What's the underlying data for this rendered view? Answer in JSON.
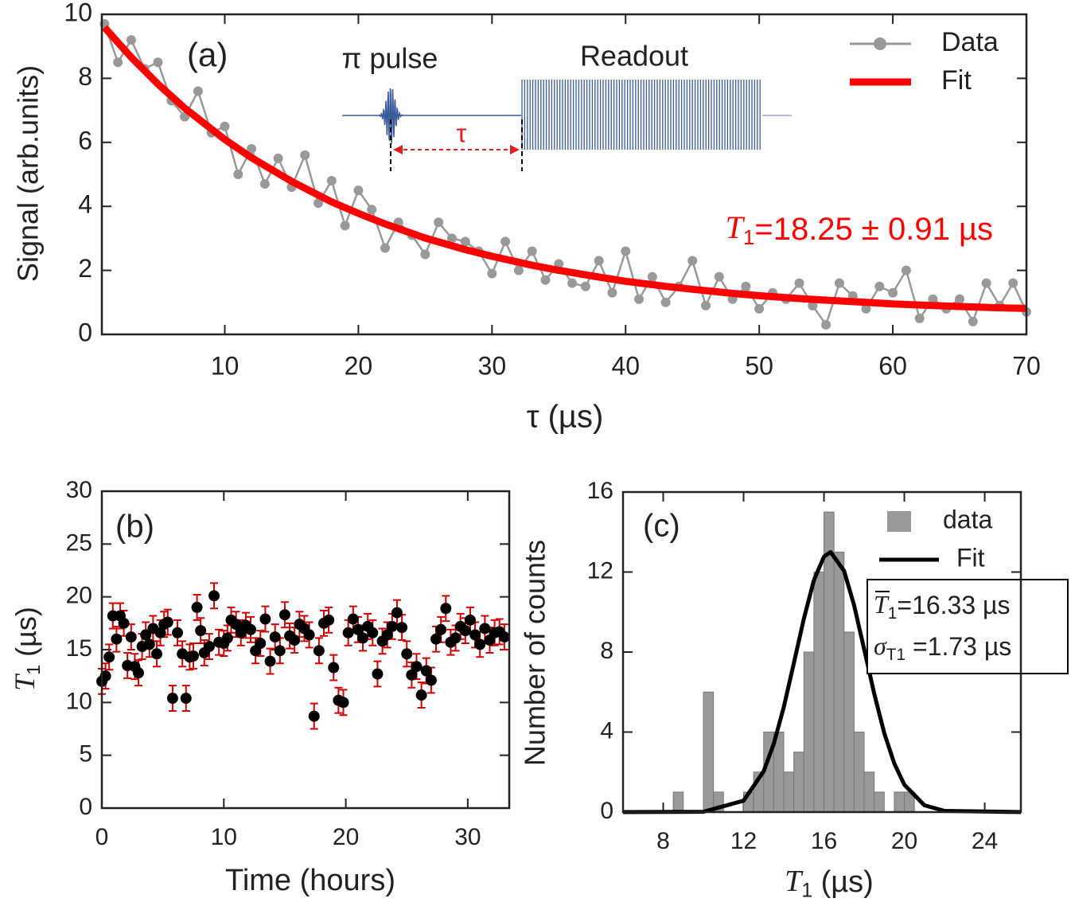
{
  "chart_data": [
    {
      "type": "line",
      "label": "(a)",
      "xlabel": "τ (µs)",
      "ylabel": "Signal (arb.units)",
      "xlim": [
        0.8,
        70
      ],
      "ylim": [
        0,
        10
      ],
      "xticks": [
        10,
        20,
        30,
        40,
        50,
        60,
        70
      ],
      "yticks": [
        0,
        2,
        4,
        6,
        8,
        10
      ],
      "series": [
        {
          "name": "Data",
          "color": "#999999",
          "marker": true,
          "x": [
            1,
            2,
            3,
            4,
            5,
            6,
            7,
            8,
            9,
            10,
            11,
            12,
            13,
            14,
            15,
            16,
            17,
            18,
            19,
            20,
            21,
            22,
            23,
            24,
            25,
            26,
            27,
            28,
            29,
            30,
            31,
            32,
            33,
            34,
            35,
            36,
            37,
            38,
            39,
            40,
            41,
            42,
            43,
            44,
            45,
            46,
            47,
            48,
            49,
            50,
            51,
            52,
            53,
            54,
            55,
            56,
            57,
            58,
            59,
            60,
            61,
            62,
            63,
            64,
            65,
            66,
            67,
            68,
            69,
            70
          ],
          "values": [
            9.7,
            8.5,
            9.2,
            8.3,
            8.5,
            7.3,
            6.8,
            7.6,
            6.3,
            6.5,
            5.0,
            5.8,
            4.7,
            5.5,
            4.6,
            5.6,
            4.1,
            4.8,
            3.4,
            4.5,
            3.9,
            2.7,
            3.5,
            3.1,
            2.5,
            3.5,
            3.0,
            2.9,
            2.6,
            1.9,
            2.9,
            2.0,
            2.6,
            1.7,
            2.2,
            1.6,
            1.5,
            2.3,
            1.3,
            2.6,
            1.1,
            1.8,
            1.0,
            1.5,
            2.3,
            0.9,
            1.8,
            1.1,
            1.5,
            0.8,
            1.3,
            1.1,
            1.6,
            0.9,
            0.3,
            1.6,
            1.2,
            0.8,
            1.5,
            1.3,
            2.0,
            0.5,
            1.1,
            0.8,
            1.1,
            0.4,
            1.6,
            0.9,
            1.6,
            0.7
          ]
        },
        {
          "name": "Fit",
          "color": "#ff0000",
          "marker": false,
          "x": [
            1,
            3,
            5,
            7,
            10,
            12,
            15,
            18,
            20,
            22,
            25,
            28,
            30,
            33,
            35,
            38,
            40,
            43,
            45,
            48,
            50,
            53,
            55,
            58,
            60,
            63,
            65,
            68,
            70
          ],
          "values": [
            9.59,
            8.66,
            7.82,
            7.07,
            6.09,
            5.52,
            4.78,
            4.14,
            3.78,
            3.45,
            3.01,
            2.65,
            2.44,
            2.16,
            2.0,
            1.79,
            1.66,
            1.5,
            1.41,
            1.28,
            1.21,
            1.12,
            1.07,
            1.0,
            0.95,
            0.9,
            0.87,
            0.83,
            0.81
          ]
        }
      ],
      "annotations": {
        "pulse": "π pulse",
        "readout": "Readout",
        "delay": "τ"
      },
      "fit_label": {
        "symbol": "T",
        "subscript": "1",
        "text": "=18.25 ± 0.91 µs",
        "color": "#ff0000"
      }
    },
    {
      "type": "errorbar",
      "label": "(b)",
      "xlabel": "Time (hours)",
      "ylabel": {
        "symbol": "T",
        "subscript": "1",
        "text": " (µs)"
      },
      "xlim": [
        0,
        33.4
      ],
      "ylim": [
        0,
        30
      ],
      "xticks": [
        0,
        10,
        20,
        30
      ],
      "yticks": [
        0,
        5,
        10,
        15,
        20,
        25,
        30
      ],
      "color": "#000000",
      "error_color": "#cc0000",
      "error": 1.2,
      "x": [
        0.0,
        0.3,
        0.6,
        0.9,
        1.2,
        1.5,
        1.8,
        2.1,
        2.4,
        2.7,
        3.0,
        3.3,
        3.6,
        3.9,
        4.2,
        4.5,
        4.8,
        5.1,
        5.4,
        5.8,
        6.2,
        6.6,
        6.9,
        7.2,
        7.5,
        7.8,
        8.1,
        8.4,
        8.8,
        9.2,
        9.6,
        10.0,
        10.3,
        10.6,
        11.0,
        11.4,
        11.8,
        12.2,
        12.6,
        13.0,
        13.4,
        13.8,
        14.2,
        14.6,
        15.0,
        15.4,
        15.8,
        16.2,
        16.6,
        17.0,
        17.4,
        17.8,
        18.2,
        18.6,
        19.0,
        19.4,
        19.8,
        20.2,
        20.6,
        21.0,
        21.4,
        21.8,
        22.2,
        22.6,
        23.0,
        23.4,
        23.8,
        24.2,
        24.6,
        25.0,
        25.4,
        25.8,
        26.2,
        26.6,
        27.0,
        27.4,
        27.8,
        28.2,
        28.6,
        29.0,
        29.4,
        29.8,
        30.2,
        30.6,
        31.0,
        31.4,
        31.8,
        32.2,
        32.6,
        33.0
      ],
      "values": [
        12.0,
        12.5,
        14.3,
        18.2,
        16.0,
        18.2,
        17.5,
        13.5,
        16.2,
        13.4,
        12.8,
        15.3,
        16.4,
        15.5,
        17.0,
        14.6,
        16.6,
        17.4,
        17.6,
        10.4,
        16.6,
        14.6,
        10.4,
        14.3,
        14.4,
        19.0,
        16.8,
        14.7,
        15.3,
        20.1,
        15.7,
        15.6,
        16.1,
        17.8,
        17.4,
        16.6,
        17.3,
        16.9,
        14.9,
        15.6,
        17.9,
        13.9,
        16.2,
        14.9,
        18.3,
        16.3,
        15.9,
        17.4,
        17.0,
        16.4,
        8.7,
        14.9,
        17.5,
        17.8,
        13.3,
        10.2,
        10.0,
        16.6,
        17.9,
        16.9,
        16.1,
        17.2,
        16.6,
        12.7,
        15.8,
        16.4,
        17.2,
        18.5,
        17.1,
        14.6,
        12.6,
        13.4,
        10.7,
        13.0,
        12.1,
        16.0,
        16.9,
        18.9,
        15.7,
        16.1,
        17.2,
        16.8,
        17.8,
        16.4,
        15.5,
        17.0,
        15.9,
        16.6,
        16.7,
        16.2
      ]
    },
    {
      "type": "histogram",
      "label": "(c)",
      "xlabel": {
        "symbol": "T",
        "subscript": "1",
        "text": " (µs)"
      },
      "ylabel": "Number of counts",
      "xlim": [
        6,
        25.8
      ],
      "ylim": [
        0,
        16
      ],
      "xticks": [
        8,
        12,
        16,
        20,
        24
      ],
      "yticks": [
        0,
        4,
        8,
        12,
        16
      ],
      "name": "data",
      "color": "#999999",
      "bins": [
        8.5,
        9,
        9.5,
        10,
        10.5,
        11,
        11.5,
        12,
        12.5,
        13,
        13.5,
        14,
        14.5,
        15,
        15.5,
        16,
        16.5,
        17,
        17.5,
        18,
        18.5,
        19,
        19.5,
        20,
        20.5
      ],
      "counts": [
        1,
        0,
        0,
        6,
        1,
        0,
        0,
        1,
        2,
        4,
        4,
        2,
        3,
        8,
        12,
        15,
        13,
        9,
        4,
        2,
        1,
        0,
        1,
        1
      ],
      "fit": {
        "name": "Fit",
        "color": "#000000",
        "x": [
          6,
          10,
          12,
          13,
          13.5,
          14,
          14.5,
          15,
          15.5,
          16,
          16.33,
          17,
          17.5,
          18,
          18.5,
          19,
          19.5,
          20,
          21,
          22,
          25.8
        ],
        "values": [
          0,
          0.016,
          0.57,
          2.04,
          3.41,
          5.24,
          7.43,
          9.67,
          11.59,
          12.77,
          13,
          12.06,
          10.34,
          8.15,
          5.92,
          3.95,
          2.43,
          1.37,
          0.34,
          0.06,
          0
        ]
      },
      "stats": [
        {
          "symbol": "T",
          "subscript": "1",
          "text": "=16.33 µs",
          "bar": true
        },
        {
          "symbol": "σ",
          "subscript": "T1",
          "text": " =1.73 µs",
          "bar": false
        }
      ]
    }
  ]
}
